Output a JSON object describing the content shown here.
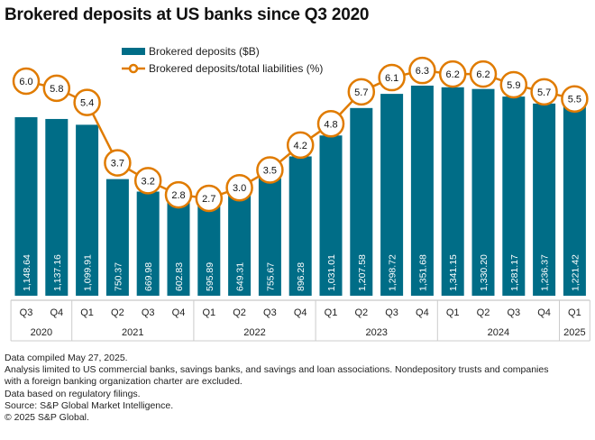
{
  "chart_data": {
    "type": "bar",
    "title": "Brokered deposits at US banks since Q3 2020",
    "categories": [
      "Q3",
      "Q4",
      "Q1",
      "Q2",
      "Q3",
      "Q4",
      "Q1",
      "Q2",
      "Q3",
      "Q4",
      "Q1",
      "Q2",
      "Q3",
      "Q4",
      "Q1",
      "Q2",
      "Q3",
      "Q4",
      "Q1"
    ],
    "years": [
      {
        "label": "2020",
        "count": 2
      },
      {
        "label": "2021",
        "count": 4
      },
      {
        "label": "2022",
        "count": 4
      },
      {
        "label": "2023",
        "count": 4
      },
      {
        "label": "2024",
        "count": 4
      },
      {
        "label": "2025",
        "count": 1
      }
    ],
    "series": [
      {
        "name": "Brokered deposits ($B)",
        "type": "bar",
        "color": "#006d87",
        "values": [
          1148.64,
          1137.16,
          1099.91,
          750.37,
          669.98,
          602.83,
          595.89,
          649.31,
          755.67,
          896.28,
          1031.01,
          1207.58,
          1298.72,
          1351.68,
          1341.15,
          1330.2,
          1281.17,
          1236.37,
          1221.42
        ],
        "labels": [
          "1,148.64",
          "1,137.16",
          "1,099.91",
          "750.37",
          "669.98",
          "602.83",
          "595.89",
          "649.31",
          "755.67",
          "896.28",
          "1,031.01",
          "1,207.58",
          "1,298.72",
          "1,351.68",
          "1,341.15",
          "1,330.20",
          "1,281.17",
          "1,236.37",
          "1,221.42"
        ]
      },
      {
        "name": "Brokered deposits/total liabilities (%)",
        "type": "line",
        "color": "#e07b00",
        "values": [
          6.0,
          5.8,
          5.4,
          3.7,
          3.2,
          2.8,
          2.7,
          3.0,
          3.5,
          4.2,
          4.8,
          5.7,
          6.1,
          6.3,
          6.2,
          6.2,
          5.9,
          5.7,
          5.5
        ],
        "labels": [
          "6.0",
          "5.8",
          "5.4",
          "3.7",
          "3.2",
          "2.8",
          "2.7",
          "3.0",
          "3.5",
          "4.2",
          "4.8",
          "5.7",
          "6.1",
          "6.3",
          "6.2",
          "6.2",
          "5.9",
          "5.7",
          "5.5"
        ]
      }
    ],
    "legend": "top-center",
    "grid": false
  },
  "footnotes": [
    "Data compiled May 27, 2025.",
    "Analysis limited to US commercial banks, savings banks, and savings and loan associations. Nondepository trusts and companies",
    "with a foreign banking organization charter are excluded.",
    "Data based on regulatory filings.",
    "Source: S&P Global Market Intelligence.",
    "© 2025 S&P Global."
  ]
}
